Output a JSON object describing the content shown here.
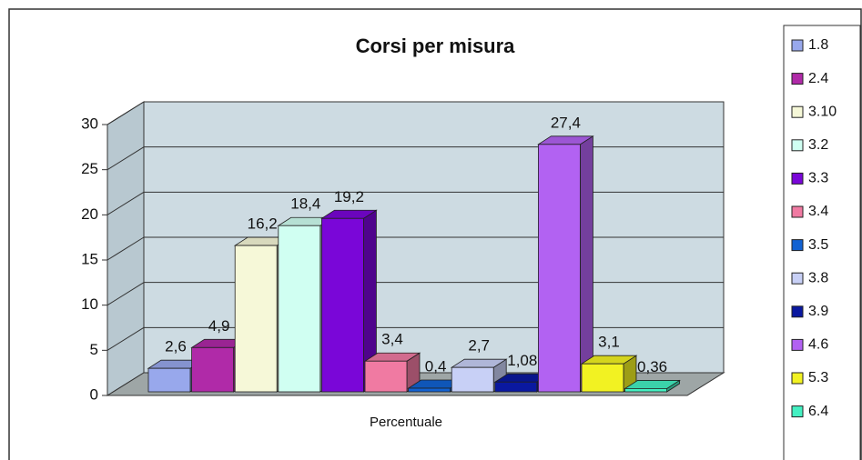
{
  "chart_data": {
    "type": "bar3d",
    "title": "Corsi per misura",
    "x_label": "Percentuale",
    "categories": [
      "Percentuale"
    ],
    "ylim": [
      0,
      30
    ],
    "yticks": [
      0,
      5,
      10,
      15,
      20,
      25,
      30
    ],
    "grid": true,
    "legend": "right",
    "series": [
      {
        "name": "1.8",
        "color": "#98a8ec",
        "values": [
          2.6
        ],
        "value_labels": [
          "2,6"
        ]
      },
      {
        "name": "2.4",
        "color": "#b02aa8",
        "values": [
          4.9
        ],
        "value_labels": [
          "4,9"
        ]
      },
      {
        "name": "3.10",
        "color": "#f6f8d8",
        "values": [
          16.2
        ],
        "value_labels": [
          "16,2"
        ]
      },
      {
        "name": "3.2",
        "color": "#d0fff2",
        "values": [
          18.4
        ],
        "value_labels": [
          "18,4"
        ]
      },
      {
        "name": "3.3",
        "color": "#7a06d8",
        "values": [
          19.2
        ],
        "value_labels": [
          "19,2"
        ]
      },
      {
        "name": "3.4",
        "color": "#f07aa2",
        "values": [
          3.4
        ],
        "value_labels": [
          "3,4"
        ]
      },
      {
        "name": "3.5",
        "color": "#1262d2",
        "values": [
          0.4
        ],
        "value_labels": [
          "0,4"
        ]
      },
      {
        "name": "3.8",
        "color": "#c8d0f6",
        "values": [
          2.7
        ],
        "value_labels": [
          "2,7"
        ]
      },
      {
        "name": "3.9",
        "color": "#0a18a0",
        "values": [
          1.08
        ],
        "value_labels": [
          "1,08"
        ]
      },
      {
        "name": "4.6",
        "color": "#b262f2",
        "values": [
          27.4
        ],
        "value_labels": [
          "27,4"
        ]
      },
      {
        "name": "5.3",
        "color": "#f2f222",
        "values": [
          3.1
        ],
        "value_labels": [
          "3,1"
        ]
      },
      {
        "name": "6.4",
        "color": "#44f0c2",
        "values": [
          0.36
        ],
        "value_labels": [
          "0,36"
        ]
      }
    ]
  }
}
